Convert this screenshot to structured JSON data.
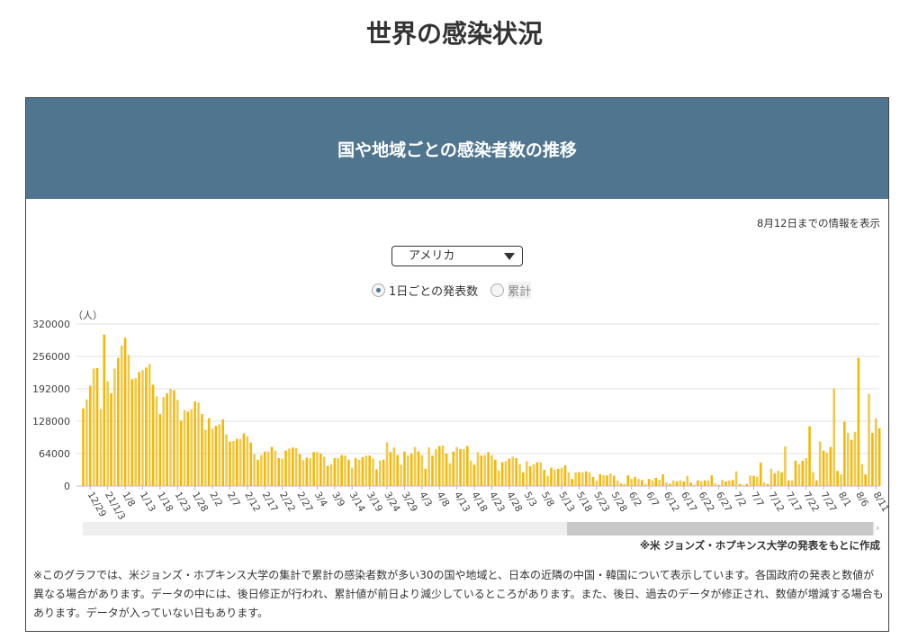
{
  "page_title": "世界の感染状況",
  "panel": {
    "title": "国や地域ごとの感染者数の推移",
    "note": "8月12日までの情報を表示",
    "country_select": "アメリカ",
    "radio_daily": "1日ごとの発表数",
    "radio_cumulative": "累計",
    "source": "※米 ジョンズ・ホプキンス大学の発表をもとに作成",
    "footnote": "※このグラフでは、米ジョンズ・ホプキンス大学の集計で累計の感染者数が多い30の国や地域と、日本の近隣の中国・韓国について表示しています。各国政府の発表と数値が異なる場合があります。データの中には、後日修正が行われ、累計値が前日より減少しているところがあります。また、後日、過去のデータが修正され、数値が増減する場合もあります。データが入っていない日もあります。"
  },
  "colors": {
    "bar": "#f5b800",
    "bar_alt": "#f2c94c",
    "header": "#4f758f"
  },
  "chart_data": {
    "type": "bar",
    "title": "国や地域ごとの感染者数の推移",
    "ylabel": "（人）",
    "ylim": [
      0,
      320000
    ],
    "yticks": [
      "0",
      "64000",
      "128000",
      "192000",
      "256000",
      "320000"
    ],
    "start_date": "2020-12-27",
    "first_tick_index": 2,
    "tick_every": 5,
    "xtick_labels": [
      "12/29",
      "21/1/3",
      "1/8",
      "1/13",
      "1/18",
      "1/23",
      "1/28",
      "2/2",
      "2/7",
      "2/12",
      "2/17",
      "2/22",
      "2/27",
      "3/4",
      "3/9",
      "3/14",
      "3/19",
      "3/24",
      "3/29",
      "4/3",
      "4/8",
      "4/13",
      "4/18",
      "4/23",
      "4/28",
      "5/3",
      "5/8",
      "5/13",
      "5/18",
      "5/23",
      "5/28",
      "6/2",
      "6/7",
      "6/12",
      "6/17",
      "6/22",
      "6/27",
      "7/2",
      "7/7",
      "7/12",
      "7/17",
      "7/22",
      "7/27",
      "8/1",
      "8/6",
      "8/11"
    ],
    "values": [
      153000,
      171000,
      198000,
      232000,
      233000,
      152000,
      299000,
      207000,
      183000,
      232000,
      253000,
      277000,
      293000,
      259000,
      211000,
      213000,
      225000,
      229000,
      234000,
      241000,
      200000,
      177000,
      142000,
      176000,
      183000,
      192000,
      189000,
      170000,
      129000,
      150000,
      147000,
      152000,
      167000,
      165000,
      142000,
      111000,
      134000,
      113000,
      119000,
      122000,
      132000,
      102000,
      88000,
      89000,
      93000,
      93000,
      104000,
      98000,
      86000,
      63000,
      52000,
      61000,
      68000,
      68000,
      77000,
      70000,
      55000,
      54000,
      70000,
      74000,
      76000,
      75000,
      63000,
      51000,
      56000,
      55000,
      67000,
      67000,
      64000,
      58000,
      40000,
      43000,
      55000,
      55000,
      61000,
      60000,
      52000,
      36000,
      55000,
      52000,
      57000,
      60000,
      60000,
      54000,
      33000,
      50000,
      52000,
      86000,
      67000,
      76000,
      61000,
      42000,
      68000,
      60000,
      64000,
      77000,
      68000,
      61000,
      34000,
      76000,
      60000,
      73000,
      79000,
      80000,
      64000,
      45000,
      68000,
      77000,
      73000,
      73000,
      79000,
      50000,
      42000,
      67000,
      60000,
      61000,
      67000,
      61000,
      52000,
      31000,
      47000,
      49000,
      54000,
      58000,
      55000,
      43000,
      27000,
      49000,
      39000,
      43000,
      47000,
      47000,
      32000,
      20000,
      36000,
      32000,
      34000,
      36000,
      41000,
      27000,
      14000,
      27000,
      27000,
      27000,
      29000,
      27000,
      18000,
      11000,
      23000,
      21000,
      21000,
      25000,
      20000,
      11000,
      5000,
      4000,
      21000,
      14000,
      18000,
      14000,
      12000,
      4000,
      14000,
      11000,
      16000,
      12000,
      23000,
      7000,
      4000,
      11000,
      9000,
      11000,
      9000,
      20000,
      7000,
      2000,
      11000,
      9000,
      11000,
      11000,
      21000,
      5000,
      2000,
      12000,
      9000,
      11000,
      12000,
      29000,
      4000,
      2000,
      4000,
      21000,
      20000,
      18000,
      46000,
      7000,
      4000,
      34000,
      25000,
      30000,
      27000,
      78000,
      11000,
      11000,
      50000,
      43000,
      50000,
      55000,
      118000,
      27000,
      11000,
      88000,
      70000,
      66000,
      77000,
      193000,
      30000,
      23000,
      127000,
      105000,
      91000,
      107000,
      253000,
      43000,
      23000,
      182000,
      105000,
      134000,
      114000
    ],
    "grid": true
  }
}
